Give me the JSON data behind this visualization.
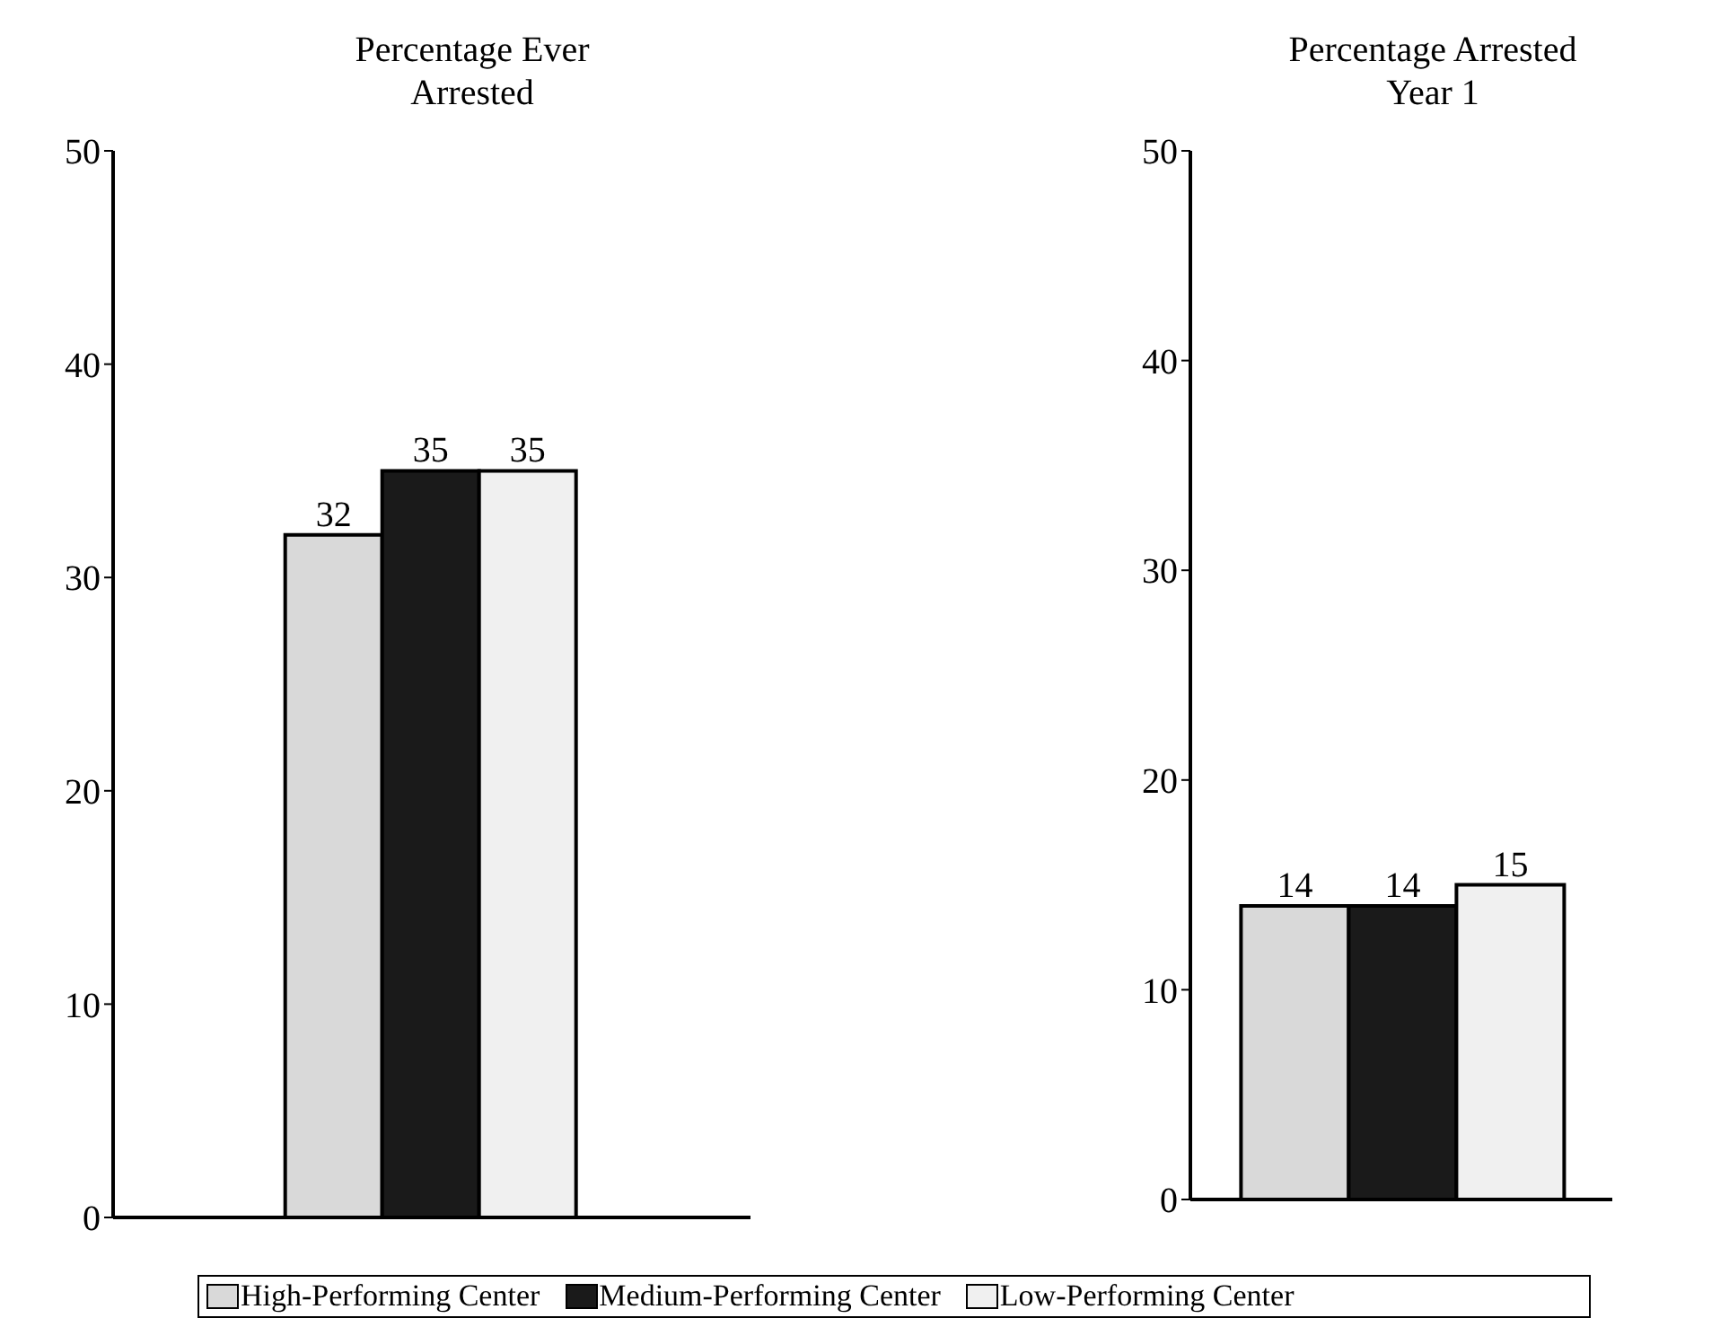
{
  "chart_data": [
    {
      "type": "bar",
      "title": "Percentage Ever Arrested",
      "categories": [
        null
      ],
      "ylim": [
        0,
        50
      ],
      "yticks": [
        0,
        10,
        20,
        30,
        40,
        50
      ],
      "grid": false,
      "data_labels": true,
      "legend": "bottom",
      "series": [
        {
          "name": "High-Performing Center",
          "color": "#d9d9d9",
          "values": [
            32
          ]
        },
        {
          "name": "Medium-Performing Center",
          "color": "#1a1a1a",
          "values": [
            35
          ]
        },
        {
          "name": "Low-Performing Center",
          "color": "#f0f0f0",
          "values": [
            35
          ]
        }
      ]
    },
    {
      "type": "bar",
      "title": "Percentage Arrested Year 1",
      "categories": [
        null
      ],
      "ylim": [
        0,
        50
      ],
      "yticks": [
        0,
        10,
        20,
        30,
        40,
        50
      ],
      "grid": false,
      "data_labels": true,
      "series": [
        {
          "color": "#d9d9d9",
          "values": [
            14
          ]
        },
        {
          "color": "#1a1a1a",
          "values": [
            14
          ]
        },
        {
          "color": "#f0f0f0",
          "values": [
            15
          ]
        }
      ]
    }
  ]
}
